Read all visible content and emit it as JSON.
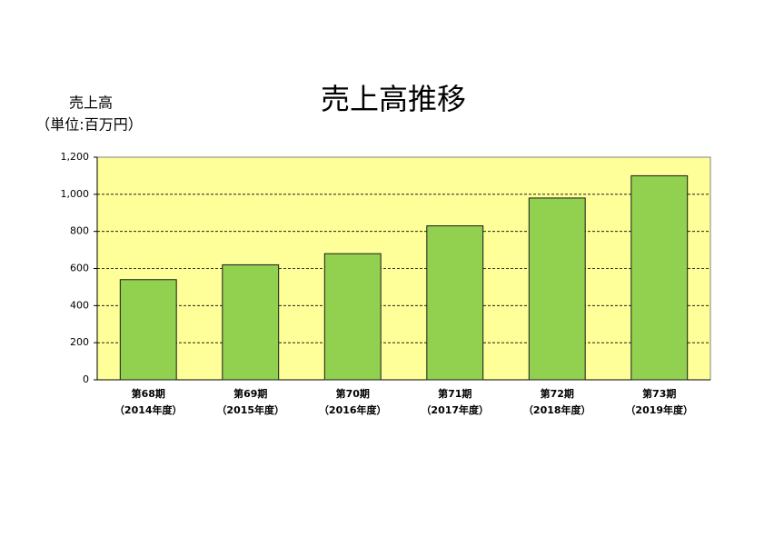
{
  "chart_data": {
    "type": "bar",
    "title": "売上高推移",
    "y_label": [
      "売上高",
      "（単位:百万円）"
    ],
    "categories": [
      [
        "第68期",
        "（2014年度）"
      ],
      [
        "第69期",
        "（2015年度）"
      ],
      [
        "第70期",
        "（2016年度）"
      ],
      [
        "第71期",
        "（2017年度）"
      ],
      [
        "第72期",
        "（2018年度）"
      ],
      [
        "第73期",
        "（2019年度）"
      ]
    ],
    "values": [
      540,
      620,
      680,
      830,
      980,
      1100
    ],
    "color": "#92d050",
    "ylim": [
      0,
      1200
    ],
    "yticks": [
      0,
      200,
      400,
      600,
      800,
      {
        "value": 1000,
        "label": "1,000"
      },
      {
        "value": 1200,
        "label": "1,200"
      }
    ],
    "grid": true
  }
}
